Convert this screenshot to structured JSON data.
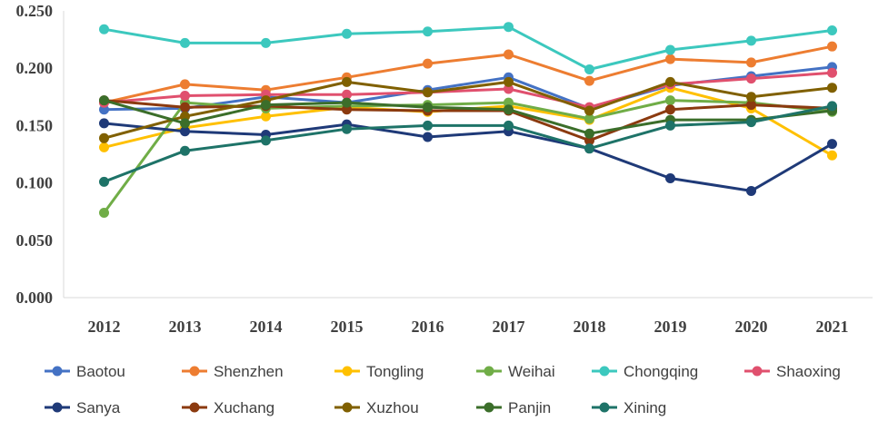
{
  "chart_data": {
    "type": "line",
    "title": "",
    "xlabel": "",
    "ylabel": "",
    "ylim": [
      0,
      0.25
    ],
    "yticks": [
      "0.000",
      "0.050",
      "0.100",
      "0.150",
      "0.200",
      "0.250"
    ],
    "grid": false,
    "legend_position": "bottom",
    "categories": [
      "2012",
      "2013",
      "2014",
      "2015",
      "2016",
      "2017",
      "2018",
      "2019",
      "2020",
      "2021"
    ],
    "series": [
      {
        "name": "Baotou",
        "color": "#4472C4",
        "values": [
          0.164,
          0.165,
          0.175,
          0.17,
          0.181,
          0.192,
          0.165,
          0.185,
          0.193,
          0.201
        ]
      },
      {
        "name": "Shenzhen",
        "color": "#ED7D31",
        "values": [
          0.17,
          0.186,
          0.181,
          0.192,
          0.204,
          0.212,
          0.189,
          0.208,
          0.205,
          0.219
        ]
      },
      {
        "name": "Tongling",
        "color": "#FFC000",
        "values": [
          0.131,
          0.148,
          0.158,
          0.166,
          0.162,
          0.167,
          0.155,
          0.183,
          0.165,
          0.124
        ]
      },
      {
        "name": "Weihai",
        "color": "#70AD47",
        "values": [
          0.074,
          0.17,
          0.165,
          0.167,
          0.168,
          0.17,
          0.156,
          0.172,
          0.17,
          0.162
        ]
      },
      {
        "name": "Chongqing",
        "color": "#3CC8BE",
        "values": [
          0.234,
          0.222,
          0.222,
          0.23,
          0.232,
          0.236,
          0.199,
          0.216,
          0.224,
          0.233
        ]
      },
      {
        "name": "Shaoxing",
        "color": "#E0506E",
        "values": [
          0.17,
          0.176,
          0.177,
          0.177,
          0.179,
          0.182,
          0.166,
          0.186,
          0.191,
          0.196
        ]
      },
      {
        "name": "Sanya",
        "color": "#1F3A78",
        "values": [
          0.152,
          0.145,
          0.142,
          0.151,
          0.14,
          0.145,
          0.13,
          0.104,
          0.093,
          0.134
        ]
      },
      {
        "name": "Xuchang",
        "color": "#8B3A0F",
        "values": [
          0.172,
          0.166,
          0.167,
          0.164,
          0.163,
          0.163,
          0.137,
          0.164,
          0.168,
          0.165
        ]
      },
      {
        "name": "Xuzhou",
        "color": "#806000",
        "values": [
          0.139,
          0.158,
          0.172,
          0.188,
          0.179,
          0.188,
          0.163,
          0.188,
          0.175,
          0.183
        ]
      },
      {
        "name": "Panjin",
        "color": "#3B6E2A",
        "values": [
          0.172,
          0.152,
          0.168,
          0.17,
          0.166,
          0.164,
          0.143,
          0.155,
          0.155,
          0.163
        ]
      },
      {
        "name": "Xining",
        "color": "#1E7368",
        "values": [
          0.101,
          0.128,
          0.137,
          0.147,
          0.15,
          0.15,
          0.13,
          0.15,
          0.153,
          0.167
        ]
      }
    ]
  }
}
